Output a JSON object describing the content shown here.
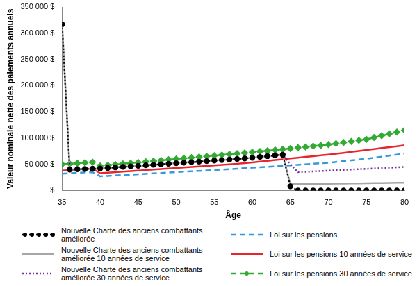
{
  "chart_data": {
    "type": "line",
    "x_label": "Âge",
    "y_label": "Valeur nominale nette des paiements annuels",
    "x": [
      35,
      36,
      37,
      38,
      39,
      40,
      41,
      42,
      43,
      44,
      45,
      46,
      47,
      48,
      49,
      50,
      51,
      52,
      53,
      54,
      55,
      56,
      57,
      58,
      59,
      60,
      61,
      62,
      63,
      64,
      65,
      66,
      67,
      68,
      69,
      70,
      71,
      72,
      73,
      74,
      75,
      76,
      77,
      78,
      79,
      80
    ],
    "xlim": [
      35,
      80
    ],
    "xticks": [
      35,
      40,
      45,
      50,
      55,
      60,
      65,
      70,
      75,
      80
    ],
    "ylim": [
      0,
      350000
    ],
    "yticks": [
      {
        "value": 0,
        "label": "$"
      },
      {
        "value": 50000,
        "label": "50 000 $"
      },
      {
        "value": 100000,
        "label": "100 000 $"
      },
      {
        "value": 150000,
        "label": "150 000 $"
      },
      {
        "value": 200000,
        "label": "200 000 $"
      },
      {
        "value": 250000,
        "label": "250 000 $"
      },
      {
        "value": 300000,
        "label": "300 000 $"
      },
      {
        "value": 350000,
        "label": "350 000 $"
      }
    ],
    "grid": false,
    "legend": "bottom",
    "series": [
      {
        "name": "Nouvelle Charte des anciens combattants améliorée",
        "color": "#000000",
        "marker": "circle",
        "line_style": "dotted",
        "values": [
          317000,
          40000,
          40500,
          41000,
          41500,
          42000,
          43000,
          44000,
          45000,
          46000,
          47000,
          48000,
          49000,
          50000,
          51000,
          52000,
          53000,
          54000,
          55000,
          56000,
          57000,
          58000,
          59000,
          60000,
          61000,
          62500,
          64000,
          65500,
          67000,
          68000,
          8000,
          0,
          0,
          0,
          0,
          0,
          0,
          0,
          0,
          0,
          0,
          0,
          0,
          0,
          0,
          0
        ]
      },
      {
        "name": "Nouvelle Charte des anciens combattants améliorée 10 années de service",
        "color": "#a6a6a6",
        "marker": "none",
        "line_style": "solid",
        "values": [
          317000,
          40000,
          40500,
          41000,
          41500,
          42000,
          43000,
          44000,
          45000,
          46000,
          47000,
          48000,
          49000,
          50000,
          51000,
          52000,
          53000,
          54000,
          55000,
          56000,
          57000,
          58000,
          59000,
          60000,
          61000,
          62500,
          64000,
          65500,
          67000,
          68000,
          12000,
          12000,
          12200,
          12400,
          12600,
          12800,
          13000,
          13200,
          13400,
          13600,
          13800,
          14000,
          14200,
          14400,
          14600,
          14800
        ]
      },
      {
        "name": "Nouvelle Charte des anciens combattants améliorée 30 années de service",
        "color": "#7030a0",
        "marker": "none",
        "line_style": "dotted",
        "values": [
          317000,
          40000,
          40500,
          41000,
          41500,
          42000,
          43000,
          44000,
          45000,
          46000,
          47000,
          48000,
          49000,
          50000,
          51000,
          52000,
          53000,
          54000,
          55000,
          56000,
          57000,
          58000,
          59000,
          60000,
          61000,
          62500,
          64000,
          65500,
          67000,
          68000,
          50000,
          35000,
          35700,
          36400,
          37100,
          37800,
          38500,
          39200,
          39900,
          40600,
          41300,
          42000,
          42700,
          43400,
          44100,
          45000
        ]
      },
      {
        "name": "Loi sur les pensions",
        "color": "#3399dd",
        "marker": "none",
        "line_style": "dashed",
        "values": [
          32000,
          32800,
          33600,
          34400,
          35000,
          27000,
          27800,
          28600,
          29400,
          30200,
          31000,
          31800,
          32600,
          33400,
          34200,
          35000,
          35800,
          36600,
          37400,
          38200,
          39000,
          39800,
          40700,
          41600,
          42500,
          43400,
          44300,
          45200,
          46100,
          47000,
          48000,
          49000,
          50000,
          51000,
          52000,
          53000,
          54500,
          56000,
          57500,
          59000,
          60500,
          62500,
          64500,
          66500,
          68500,
          70500
        ]
      },
      {
        "name": "Loi sur les pensions 10 années de service",
        "color": "#e8252a",
        "marker": "none",
        "line_style": "solid",
        "values": [
          38000,
          39000,
          40000,
          41000,
          42000,
          33000,
          34000,
          35000,
          36000,
          37000,
          38000,
          39000,
          40000,
          41000,
          42000,
          43000,
          44000,
          45000,
          46000,
          47000,
          48000,
          49000,
          50000,
          51000,
          52000,
          53500,
          55000,
          56500,
          58000,
          59500,
          61000,
          62500,
          64000,
          65500,
          67000,
          68500,
          70000,
          71800,
          73600,
          75400,
          77200,
          79000,
          80800,
          82600,
          84400,
          86200
        ]
      },
      {
        "name": "Loi sur les pensions 30 années de service",
        "color": "#33aa33",
        "marker": "diamond",
        "line_style": "dashed",
        "values": [
          50000,
          51000,
          52000,
          53000,
          54000,
          47000,
          48300,
          49600,
          50900,
          52200,
          53500,
          54800,
          56100,
          57400,
          58700,
          60000,
          61300,
          62600,
          63900,
          65200,
          66500,
          67800,
          69100,
          70400,
          71700,
          73000,
          74400,
          75800,
          77200,
          78600,
          80000,
          81500,
          83000,
          84500,
          86000,
          87500,
          89500,
          91500,
          93500,
          95500,
          97500,
          101000,
          104500,
          108000,
          111500,
          115000
        ]
      }
    ]
  }
}
